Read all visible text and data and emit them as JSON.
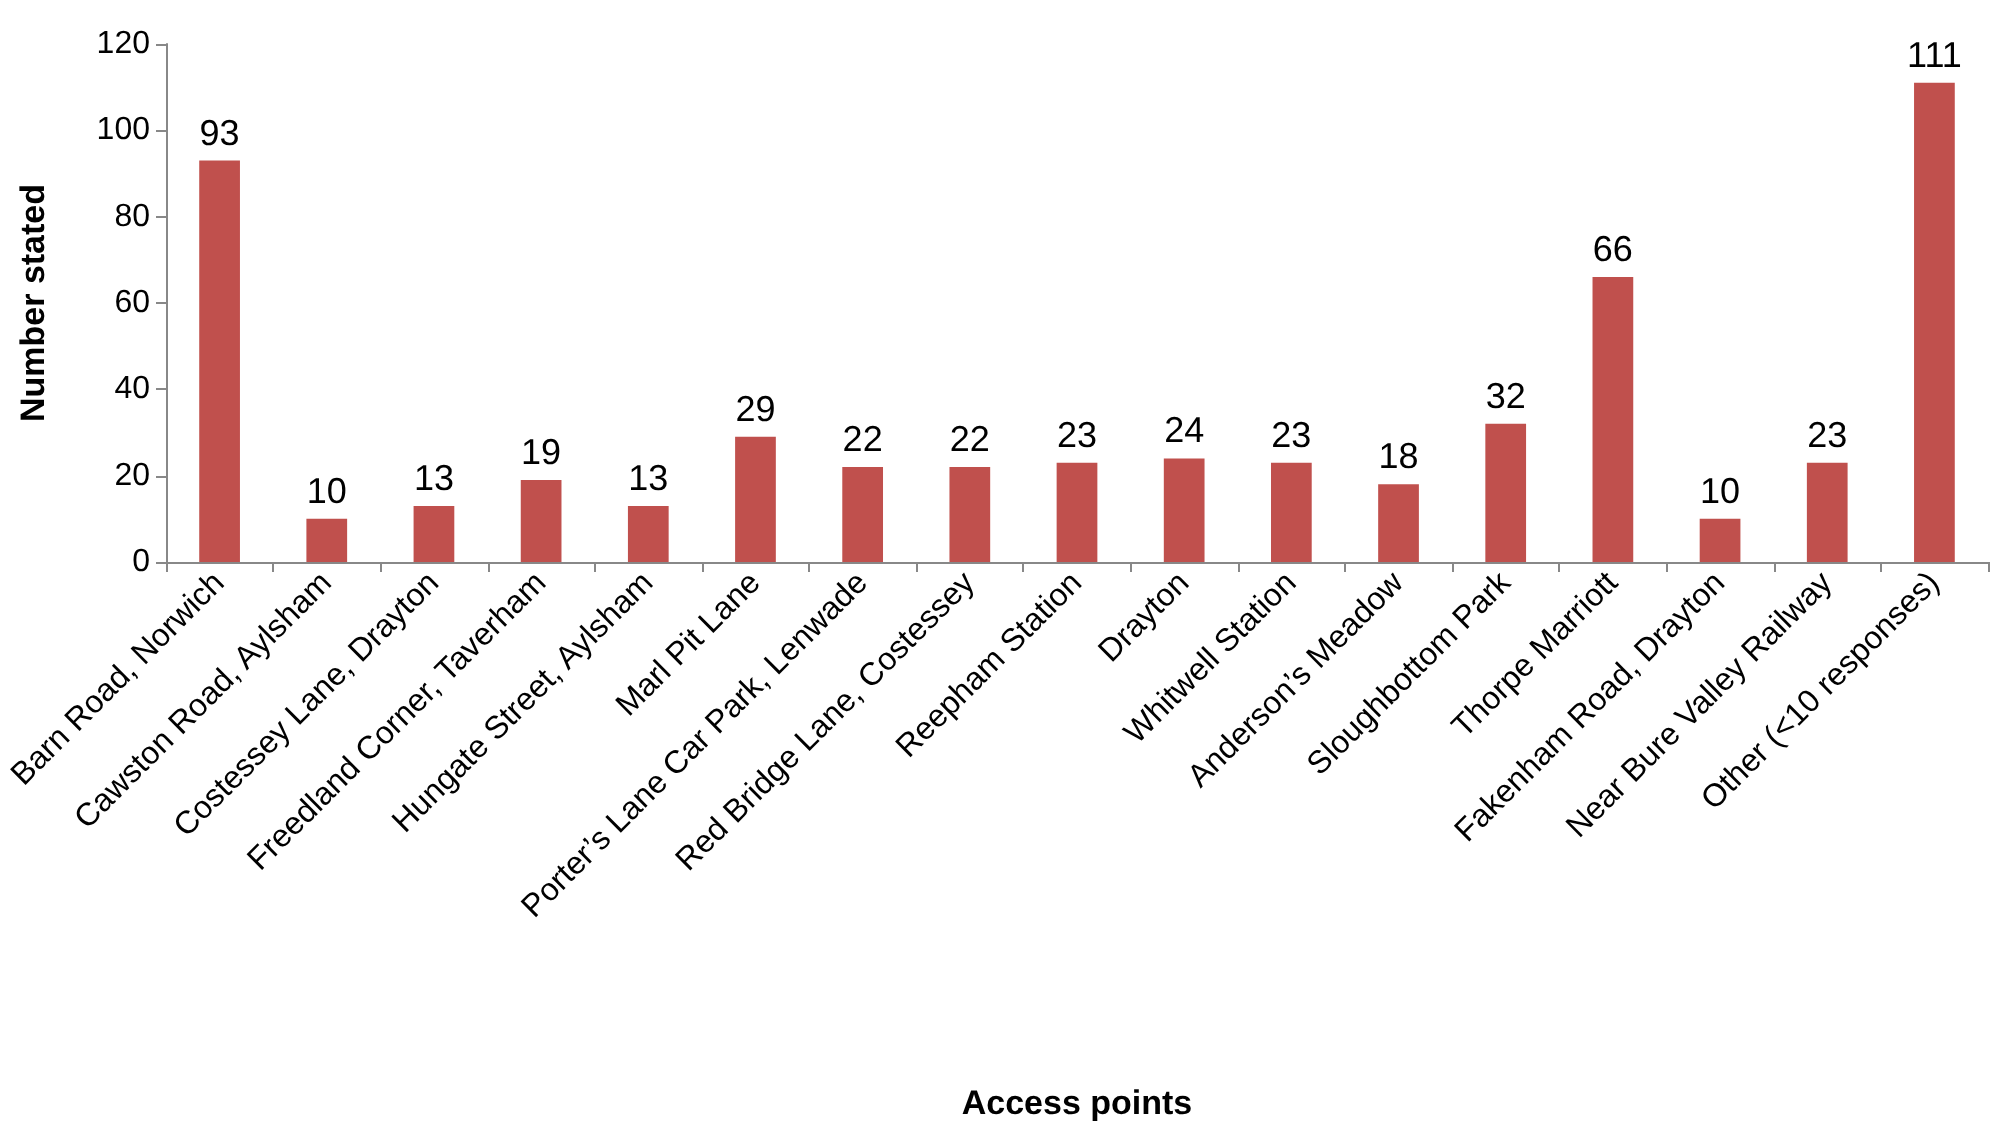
{
  "chart_data": {
    "type": "bar",
    "xlabel": "Access points",
    "ylabel": "Number stated",
    "categories": [
      "Barn Road, Norwich",
      "Cawston Road, Aylsham",
      "Costessey Lane, Drayton",
      "Freedland Corner, Taverham",
      "Hungate Street, Aylsham",
      "Marl Pit Lane",
      "Porter’s Lane Car Park, Lenwade",
      "Red Bridge Lane, Costessey",
      "Reepham Station",
      "Drayton",
      "Whitwell Station",
      "Anderson’s Meadow",
      "Sloughbottom Park",
      "Thorpe Marriott",
      "Fakenham Road, Drayton",
      "Near Bure Valley Railway",
      "Other (<10 responses)"
    ],
    "values": [
      93,
      10,
      13,
      19,
      13,
      29,
      22,
      22,
      23,
      24,
      23,
      18,
      32,
      66,
      10,
      23,
      111
    ],
    "color": "#c0504d",
    "ylim": [
      0,
      120
    ],
    "yticks": [
      0,
      20,
      40,
      60,
      80,
      100,
      120
    ],
    "grid": false,
    "data_labels": true
  }
}
